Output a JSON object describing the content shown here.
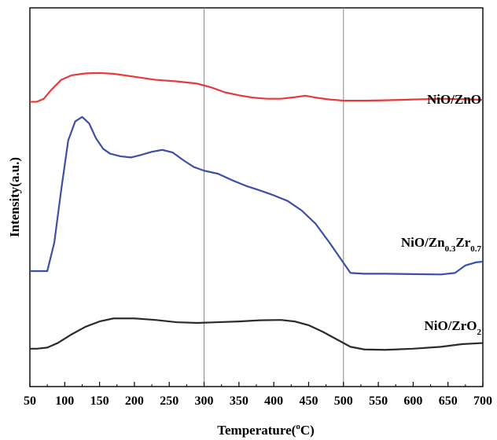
{
  "chart_data": {
    "type": "line",
    "xlabel": "Temperature",
    "xlabel_unit": "C",
    "xlabel_deg": "o",
    "ylabel": "Intensity(a.u.)",
    "xlim": [
      50,
      700
    ],
    "xticks": [
      50,
      100,
      150,
      200,
      250,
      300,
      350,
      400,
      450,
      500,
      550,
      600,
      650,
      700
    ],
    "vertical_lines": [
      300,
      500
    ],
    "y_ticks_shown": false,
    "series": [
      {
        "name": "NiO/ZnO",
        "name_parts": [
          "NiO/ZnO"
        ],
        "color": "#e8393a",
        "points": [
          [
            50,
            0.752
          ],
          [
            60,
            0.752
          ],
          [
            70,
            0.76
          ],
          [
            80,
            0.782
          ],
          [
            95,
            0.81
          ],
          [
            110,
            0.822
          ],
          [
            130,
            0.827
          ],
          [
            150,
            0.828
          ],
          [
            170,
            0.826
          ],
          [
            200,
            0.818
          ],
          [
            230,
            0.81
          ],
          [
            260,
            0.806
          ],
          [
            290,
            0.8
          ],
          [
            310,
            0.79
          ],
          [
            330,
            0.777
          ],
          [
            350,
            0.769
          ],
          [
            370,
            0.763
          ],
          [
            390,
            0.76
          ],
          [
            410,
            0.76
          ],
          [
            430,
            0.764
          ],
          [
            445,
            0.768
          ],
          [
            460,
            0.763
          ],
          [
            480,
            0.758
          ],
          [
            500,
            0.755
          ],
          [
            530,
            0.755
          ],
          [
            560,
            0.756
          ],
          [
            600,
            0.758
          ],
          [
            640,
            0.76
          ],
          [
            670,
            0.759
          ],
          [
            700,
            0.757
          ]
        ]
      },
      {
        "name": "NiO/Zn0.3Zr0.7",
        "name_parts": [
          "NiO/Zn",
          "0.3",
          "Zr",
          "0.7"
        ],
        "color": "#3d4fa6",
        "points": [
          [
            50,
            0.305
          ],
          [
            60,
            0.305
          ],
          [
            75,
            0.305
          ],
          [
            85,
            0.38
          ],
          [
            95,
            0.52
          ],
          [
            105,
            0.65
          ],
          [
            115,
            0.7
          ],
          [
            125,
            0.712
          ],
          [
            135,
            0.695
          ],
          [
            145,
            0.655
          ],
          [
            155,
            0.628
          ],
          [
            165,
            0.615
          ],
          [
            180,
            0.608
          ],
          [
            195,
            0.605
          ],
          [
            210,
            0.612
          ],
          [
            225,
            0.62
          ],
          [
            240,
            0.625
          ],
          [
            255,
            0.618
          ],
          [
            270,
            0.598
          ],
          [
            285,
            0.58
          ],
          [
            300,
            0.57
          ],
          [
            320,
            0.562
          ],
          [
            340,
            0.545
          ],
          [
            360,
            0.53
          ],
          [
            380,
            0.518
          ],
          [
            400,
            0.505
          ],
          [
            420,
            0.49
          ],
          [
            440,
            0.465
          ],
          [
            460,
            0.43
          ],
          [
            480,
            0.38
          ],
          [
            495,
            0.34
          ],
          [
            510,
            0.3
          ],
          [
            530,
            0.298
          ],
          [
            560,
            0.298
          ],
          [
            600,
            0.297
          ],
          [
            640,
            0.296
          ],
          [
            660,
            0.3
          ],
          [
            675,
            0.32
          ],
          [
            690,
            0.328
          ],
          [
            700,
            0.33
          ]
        ]
      },
      {
        "name": "NiO/ZrO2",
        "name_parts": [
          "NiO/ZrO",
          "2"
        ],
        "color": "#2b2b2b",
        "points": [
          [
            50,
            0.1
          ],
          [
            60,
            0.1
          ],
          [
            75,
            0.103
          ],
          [
            90,
            0.115
          ],
          [
            110,
            0.138
          ],
          [
            130,
            0.158
          ],
          [
            150,
            0.172
          ],
          [
            170,
            0.18
          ],
          [
            200,
            0.18
          ],
          [
            230,
            0.176
          ],
          [
            260,
            0.17
          ],
          [
            290,
            0.168
          ],
          [
            320,
            0.17
          ],
          [
            350,
            0.172
          ],
          [
            380,
            0.175
          ],
          [
            410,
            0.176
          ],
          [
            430,
            0.172
          ],
          [
            450,
            0.162
          ],
          [
            470,
            0.145
          ],
          [
            490,
            0.125
          ],
          [
            510,
            0.105
          ],
          [
            530,
            0.098
          ],
          [
            560,
            0.097
          ],
          [
            600,
            0.1
          ],
          [
            640,
            0.105
          ],
          [
            670,
            0.112
          ],
          [
            700,
            0.115
          ]
        ]
      }
    ]
  }
}
